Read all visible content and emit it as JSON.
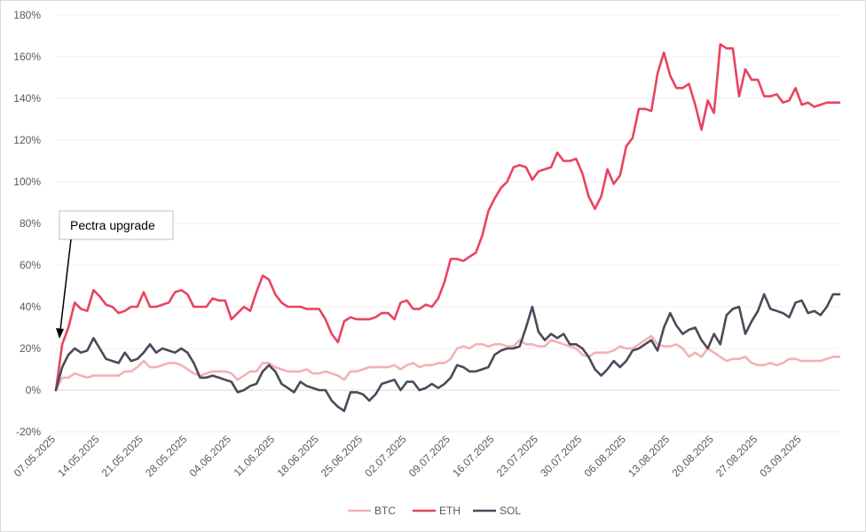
{
  "chart_data": {
    "type": "line",
    "title": "",
    "xlabel": "",
    "ylabel": "",
    "ylim": [
      -20,
      180
    ],
    "yticks": [
      -20,
      0,
      20,
      40,
      60,
      80,
      100,
      120,
      140,
      160,
      180
    ],
    "ytick_labels": [
      "-20%",
      "0%",
      "20%",
      "40%",
      "60%",
      "80%",
      "100%",
      "120%",
      "140%",
      "160%",
      "180%"
    ],
    "num_points": 126,
    "x_tick_labels": [
      "07.05.2025",
      "14.05.2025",
      "21.05.2025",
      "28.05.2025",
      "04.06.2025",
      "11.06.2025",
      "18.06.2025",
      "25.06.2025",
      "02.07.2025",
      "09.07.2025",
      "16.07.2025",
      "23.07.2025",
      "30.07.2025",
      "06.08.2025",
      "13.08.2025",
      "20.08.2025",
      "27.08.2025",
      "03.09.2025"
    ],
    "x_tick_step": 7,
    "legend_position": "bottom",
    "annotation": {
      "text": "Pectra upgrade",
      "points_to_index": 1
    },
    "series": [
      {
        "name": "BTC",
        "color": "#f4b1b6",
        "values": [
          0,
          6,
          6,
          8,
          7,
          6,
          7,
          7,
          7,
          7,
          7,
          9,
          9,
          11,
          14,
          11,
          11,
          12,
          13,
          13,
          12,
          10,
          8,
          7,
          8,
          9,
          9,
          9,
          8,
          5,
          7,
          9,
          9,
          13,
          13,
          11,
          10,
          9,
          9,
          9,
          10,
          8,
          8,
          9,
          8,
          7,
          5,
          9,
          9,
          10,
          11,
          11,
          11,
          11,
          12,
          10,
          12,
          13,
          11,
          12,
          12,
          13,
          13,
          15,
          20,
          21,
          20,
          22,
          22,
          21,
          22,
          22,
          21,
          21,
          24,
          22,
          22,
          21,
          21,
          24,
          23,
          22,
          21,
          20,
          17,
          16,
          18,
          18,
          18,
          19,
          21,
          20,
          20,
          22,
          24,
          26,
          22,
          21,
          21,
          22,
          20,
          16,
          18,
          16,
          20,
          18,
          16,
          14,
          15,
          15,
          16,
          13,
          12,
          12,
          13,
          12,
          13,
          15,
          15,
          14,
          14,
          14,
          14,
          15,
          16,
          16
        ]
      },
      {
        "name": "ETH",
        "color": "#e8445f",
        "values": [
          0,
          22,
          30,
          42,
          39,
          38,
          48,
          45,
          41,
          40,
          37,
          38,
          40,
          40,
          47,
          40,
          40,
          41,
          42,
          47,
          48,
          46,
          40,
          40,
          40,
          44,
          43,
          43,
          34,
          37,
          40,
          38,
          47,
          55,
          53,
          46,
          42,
          40,
          40,
          40,
          39,
          39,
          39,
          34,
          27,
          23,
          33,
          35,
          34,
          34,
          34,
          35,
          37,
          37,
          34,
          42,
          43,
          39,
          39,
          41,
          40,
          44,
          52,
          63,
          63,
          62,
          64,
          66,
          74,
          86,
          92,
          97,
          100,
          107,
          108,
          107,
          101,
          105,
          106,
          107,
          114,
          110,
          110,
          111,
          104,
          93,
          87,
          93,
          106,
          99,
          103,
          117,
          121,
          135,
          135,
          134,
          152,
          162,
          151,
          145,
          145,
          147,
          137,
          125,
          139,
          133,
          166,
          164,
          164,
          141,
          154,
          149,
          149,
          141,
          141,
          142,
          138,
          139,
          145,
          137,
          138,
          136,
          137,
          138,
          138,
          138
        ]
      },
      {
        "name": "SOL",
        "color": "#4a4a5a",
        "values": [
          0,
          11,
          17,
          20,
          18,
          19,
          25,
          20,
          15,
          14,
          13,
          18,
          14,
          15,
          18,
          22,
          18,
          20,
          19,
          18,
          20,
          18,
          13,
          6,
          6,
          7,
          6,
          5,
          4,
          -1,
          0,
          2,
          3,
          9,
          12,
          9,
          3,
          1,
          -1,
          4,
          2,
          1,
          0,
          0,
          -5,
          -8,
          -10,
          -1,
          -1,
          -2,
          -5,
          -2,
          3,
          4,
          5,
          0,
          4,
          4,
          0,
          1,
          3,
          1,
          3,
          6,
          12,
          11,
          9,
          9,
          10,
          11,
          17,
          19,
          20,
          20,
          21,
          30,
          40,
          28,
          24,
          27,
          25,
          27,
          22,
          22,
          20,
          16,
          10,
          7,
          10,
          14,
          11,
          14,
          19,
          20,
          22,
          24,
          19,
          30,
          37,
          31,
          27,
          29,
          30,
          24,
          20,
          27,
          22,
          36,
          39,
          40,
          27,
          33,
          38,
          46,
          39,
          38,
          37,
          35,
          42,
          43,
          37,
          38,
          36,
          40,
          46,
          46
        ]
      }
    ]
  }
}
